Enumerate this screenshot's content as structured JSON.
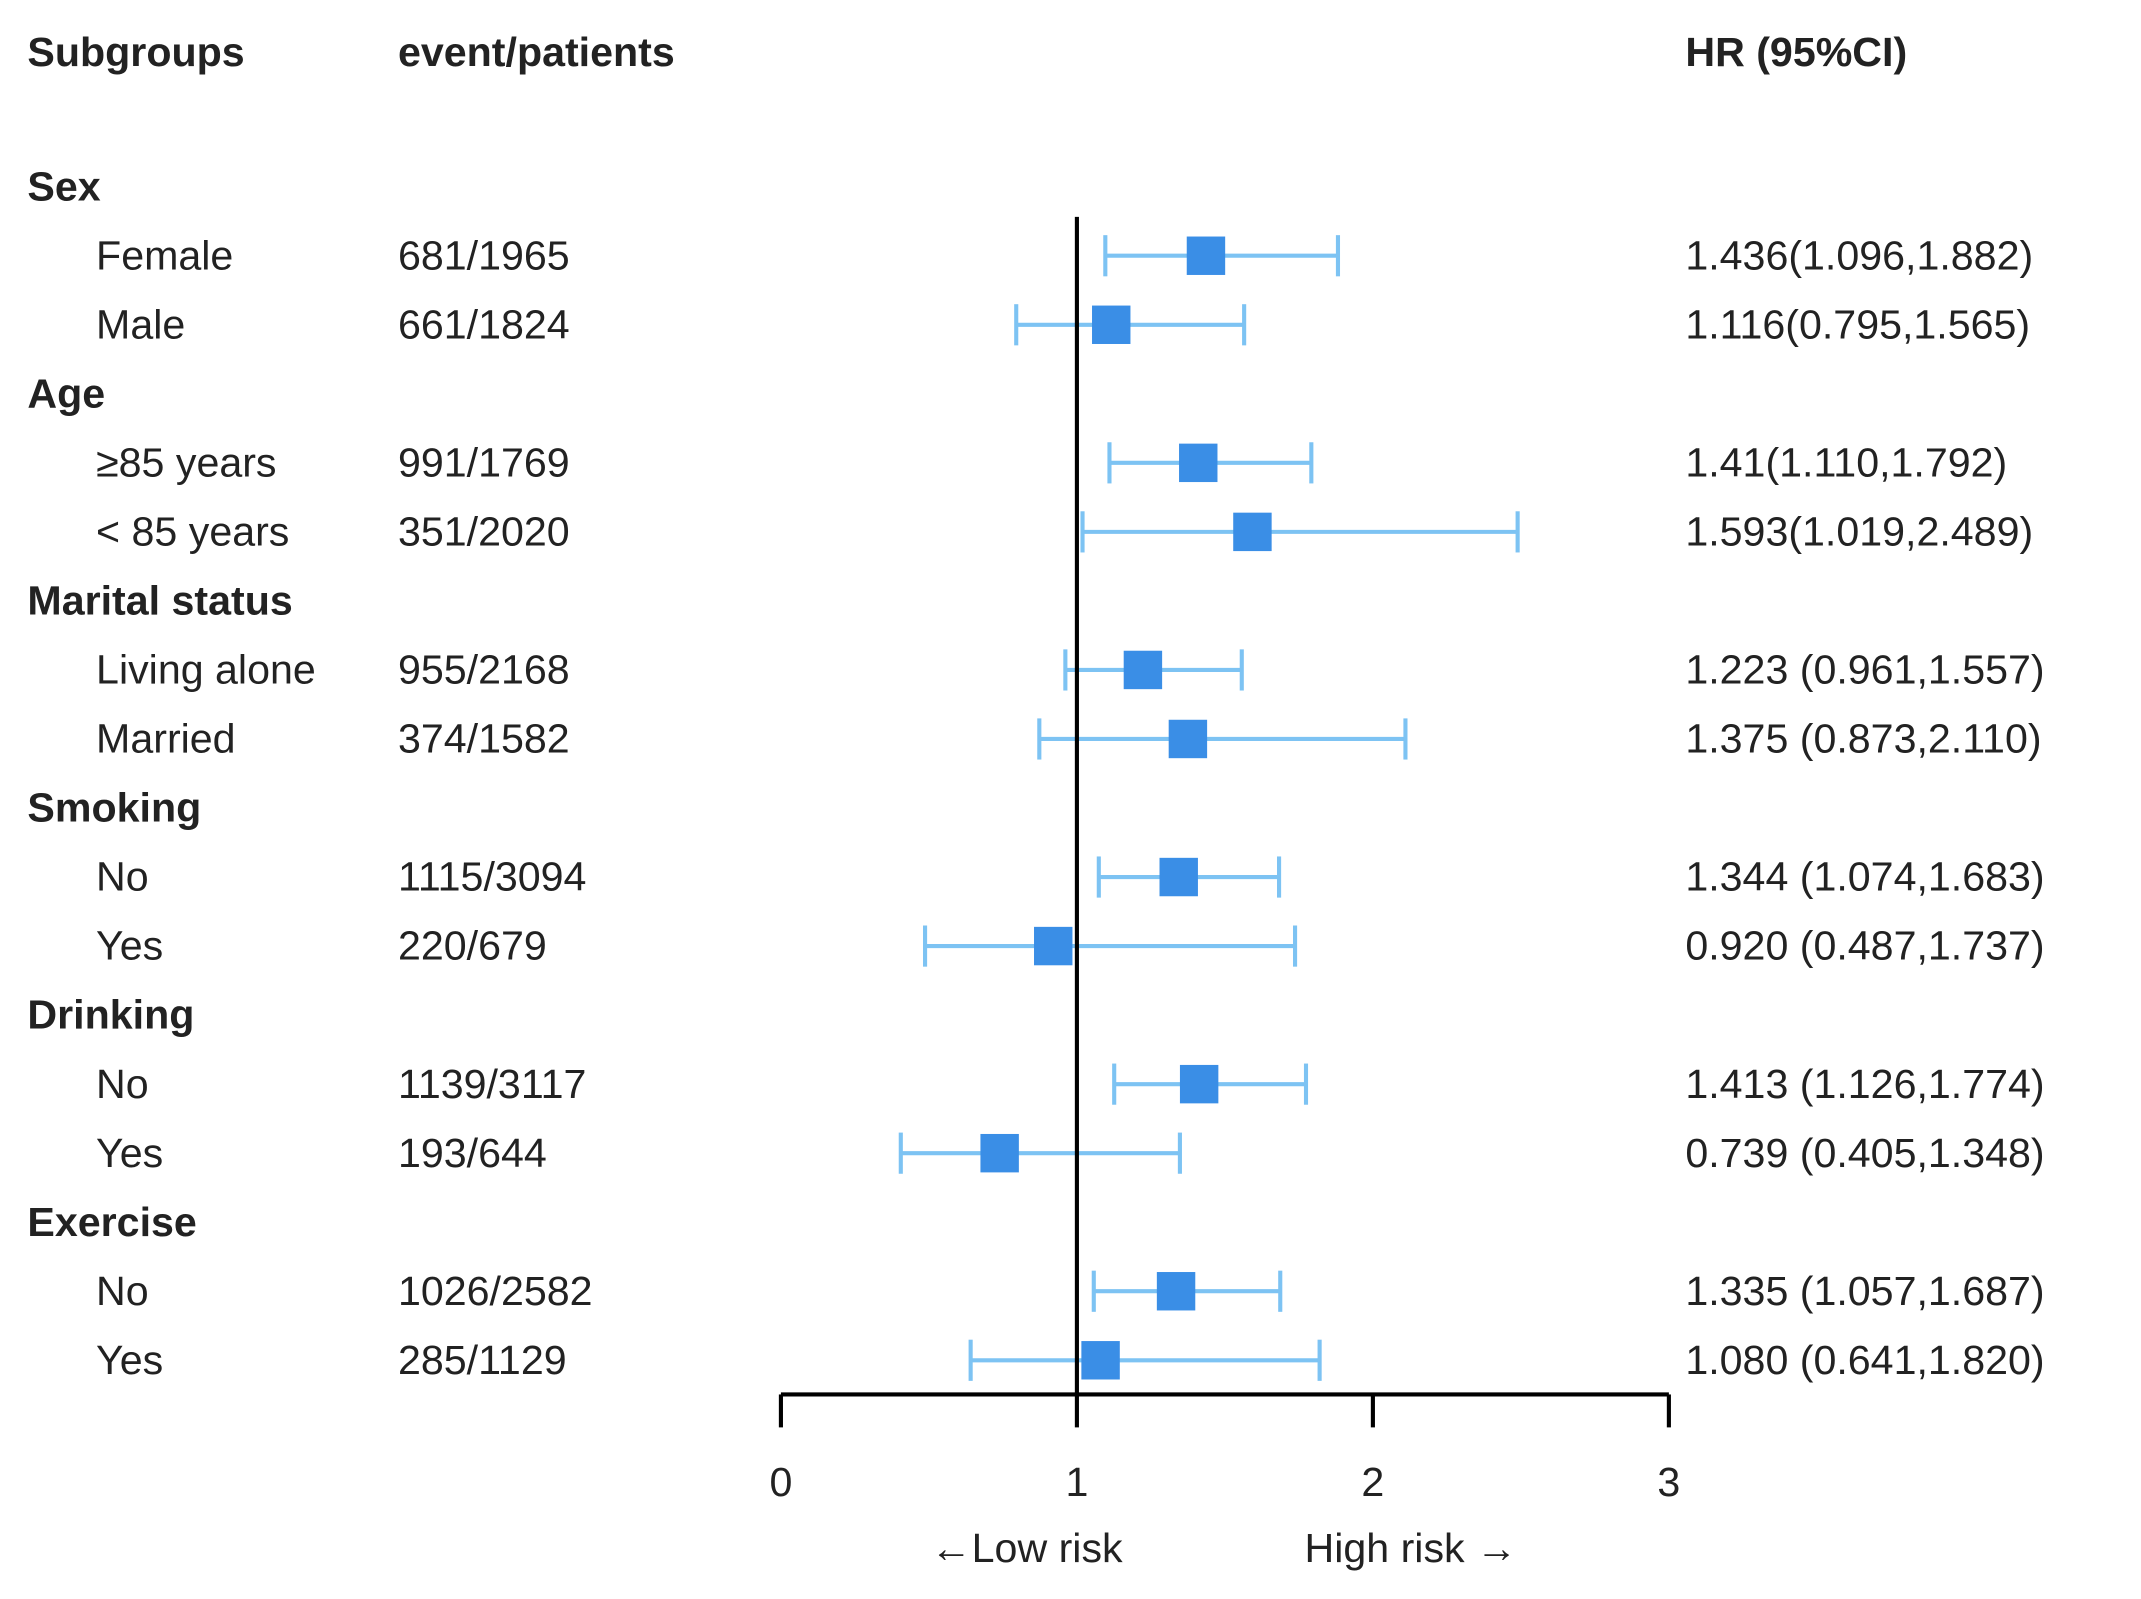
{
  "chart_data": {
    "type": "forest",
    "column_headers": [
      "Subgroups",
      "event/patients",
      "HR (95%CI)"
    ],
    "groups": [
      {
        "name": "Sex",
        "subgroups": [
          {
            "name": "Female",
            "events": "681/1965",
            "hr": 1.436,
            "lower": 1.096,
            "upper": 1.882,
            "value_label": "1.436(1.096,1.882)"
          },
          {
            "name": "Male",
            "events": "661/1824",
            "hr": 1.116,
            "lower": 0.795,
            "upper": 1.565,
            "value_label": "1.116(0.795,1.565)"
          }
        ]
      },
      {
        "name": "Age",
        "subgroups": [
          {
            "name": "≥85 years",
            "events": "991/1769",
            "hr": 1.41,
            "lower": 1.11,
            "upper": 1.792,
            "value_label": "1.41(1.110,1.792)"
          },
          {
            "name": "< 85 years",
            "events": "351/2020",
            "hr": 1.593,
            "lower": 1.019,
            "upper": 2.489,
            "value_label": "1.593(1.019,2.489)"
          }
        ]
      },
      {
        "name": "Marital status",
        "subgroups": [
          {
            "name": "Living alone",
            "events": "955/2168",
            "hr": 1.223,
            "lower": 0.961,
            "upper": 1.557,
            "value_label": "1.223 (0.961,1.557)"
          },
          {
            "name": "Married",
            "events": "374/1582",
            "hr": 1.375,
            "lower": 0.873,
            "upper": 2.11,
            "value_label": "1.375 (0.873,2.110)"
          }
        ]
      },
      {
        "name": "Smoking",
        "subgroups": [
          {
            "name": "No",
            "events": "1115/3094",
            "hr": 1.344,
            "lower": 1.074,
            "upper": 1.683,
            "value_label": "1.344 (1.074,1.683)"
          },
          {
            "name": "Yes",
            "events": "220/679",
            "hr": 0.92,
            "lower": 0.487,
            "upper": 1.737,
            "value_label": "0.920 (0.487,1.737)"
          }
        ]
      },
      {
        "name": "Drinking",
        "subgroups": [
          {
            "name": "No",
            "events": "1139/3117",
            "hr": 1.413,
            "lower": 1.126,
            "upper": 1.774,
            "value_label": "1.413 (1.126,1.774)"
          },
          {
            "name": "Yes",
            "events": "193/644",
            "hr": 0.739,
            "lower": 0.405,
            "upper": 1.348,
            "value_label": "0.739 (0.405,1.348)"
          }
        ]
      },
      {
        "name": "Exercise",
        "subgroups": [
          {
            "name": "No",
            "events": "1026/2582",
            "hr": 1.335,
            "lower": 1.057,
            "upper": 1.687,
            "value_label": "1.335 (1.057,1.687)"
          },
          {
            "name": "Yes",
            "events": "285/1129",
            "hr": 1.08,
            "lower": 0.641,
            "upper": 1.82,
            "value_label": "1.080 (0.641,1.820)"
          }
        ]
      }
    ],
    "xlim": [
      0,
      3
    ],
    "xticks": [
      0,
      1,
      2,
      3
    ],
    "reference_line": 1,
    "direction_labels": [
      "←Low risk",
      "High risk →"
    ],
    "marker_color": "#3a8ee6",
    "ci_color": "#7dc3f3"
  }
}
